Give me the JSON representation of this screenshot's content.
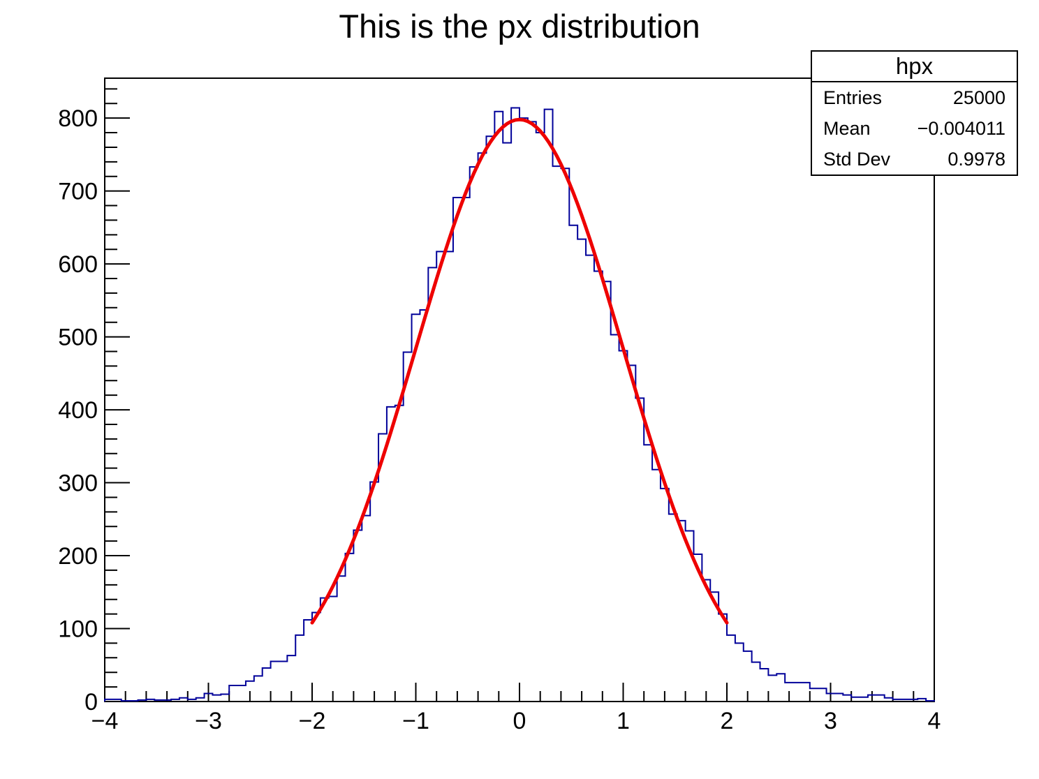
{
  "title": "This is the px distribution",
  "stats_box": {
    "title": "hpx",
    "rows": [
      {
        "label": "Entries",
        "value": "25000"
      },
      {
        "label": "Mean",
        "value": "−0.004011"
      },
      {
        "label": "Std Dev",
        "value": "0.9978"
      }
    ]
  },
  "colors": {
    "histogram_line": "#000099",
    "fit_curve": "#ee0000",
    "frame": "#000000",
    "text": "#000000",
    "background": "#ffffff"
  },
  "chart_data": {
    "type": "bar",
    "subtype": "histogram-step-outline",
    "title": "This is the px distribution",
    "histogram_name": "hpx",
    "entries": 25000,
    "mean": -0.004011,
    "std_dev": 0.9978,
    "xlabel": "",
    "ylabel": "",
    "xlim": [
      -4,
      4
    ],
    "ylim": [
      0,
      854.7
    ],
    "grid": false,
    "legend_position": "stats box, top-right",
    "n_bins": 100,
    "bin_width": 0.08,
    "x_major_ticks": [
      -4,
      -3,
      -2,
      -1,
      0,
      1,
      2,
      3,
      4
    ],
    "x_tick_labels": [
      "−4",
      "−3",
      "−2",
      "−1",
      "0",
      "1",
      "2",
      "3",
      "4"
    ],
    "x_minor_step": 0.2,
    "y_major_ticks": [
      0,
      100,
      200,
      300,
      400,
      500,
      600,
      700,
      800
    ],
    "y_tick_labels": [
      "0",
      "100",
      "200",
      "300",
      "400",
      "500",
      "600",
      "700",
      "800"
    ],
    "y_minor_step": 20,
    "bin_centers": [
      -3.96,
      -3.88,
      -3.8,
      -3.72,
      -3.64,
      -3.56,
      -3.48,
      -3.4,
      -3.32,
      -3.24,
      -3.16,
      -3.08,
      -3.0,
      -2.92,
      -2.84,
      -2.76,
      -2.68,
      -2.6,
      -2.52,
      -2.44,
      -2.36,
      -2.28,
      -2.2,
      -2.12,
      -2.04,
      -1.96,
      -1.88,
      -1.8,
      -1.72,
      -1.64,
      -1.56,
      -1.48,
      -1.4,
      -1.32,
      -1.24,
      -1.16,
      -1.08,
      -1.0,
      -0.92,
      -0.84,
      -0.76,
      -0.68,
      -0.6,
      -0.52,
      -0.44,
      -0.36,
      -0.28,
      -0.2,
      -0.12,
      -0.04,
      0.04,
      0.12,
      0.2,
      0.28,
      0.36,
      0.44,
      0.52,
      0.6,
      0.68,
      0.76,
      0.84,
      0.92,
      1.0,
      1.08,
      1.16,
      1.24,
      1.32,
      1.4,
      1.48,
      1.56,
      1.64,
      1.72,
      1.8,
      1.88,
      1.96,
      2.04,
      2.12,
      2.2,
      2.28,
      2.36,
      2.44,
      2.52,
      2.6,
      2.68,
      2.76,
      2.84,
      2.92,
      3.0,
      3.08,
      3.16,
      3.24,
      3.32,
      3.4,
      3.48,
      3.56,
      3.64,
      3.72,
      3.8,
      3.88,
      3.96
    ],
    "values": [
      3,
      3,
      1,
      1,
      2,
      3,
      2,
      2,
      3,
      5,
      3,
      5,
      11,
      9,
      10,
      22,
      22,
      28,
      35,
      46,
      55,
      55,
      63,
      91,
      112,
      122,
      142,
      144,
      172,
      203,
      235,
      255,
      301,
      367,
      404,
      406,
      479,
      531,
      537,
      595,
      617,
      617,
      691,
      691,
      733,
      752,
      775,
      809,
      766,
      814,
      800,
      795,
      780,
      812,
      734,
      731,
      653,
      634,
      612,
      590,
      576,
      503,
      481,
      461,
      416,
      352,
      318,
      292,
      257,
      248,
      234,
      202,
      167,
      150,
      120,
      91,
      80,
      69,
      54,
      45,
      36,
      38,
      26,
      26,
      26,
      18,
      18,
      11,
      11,
      9,
      6,
      6,
      9,
      9,
      5,
      3,
      3,
      3,
      4,
      1
    ],
    "fit": {
      "type": "gaussian",
      "amplitude": 798,
      "mean": 0,
      "sigma": 1.0,
      "range": [
        -2,
        2
      ]
    }
  }
}
